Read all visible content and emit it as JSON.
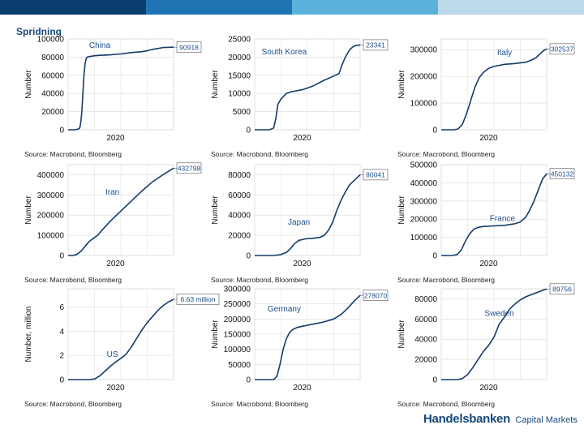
{
  "slide": {
    "title": "Spridning",
    "logo_brand": "Handelsbanken",
    "logo_suffix": "Capital Markets",
    "header_colors": [
      "#0a3d6e",
      "#1f74b4",
      "#5ab2db",
      "#bcd9ea"
    ],
    "accent": "#16497a"
  },
  "chart_data": [
    {
      "type": "line",
      "title": "China",
      "xlabel": "",
      "ylabel": "Number",
      "ylim": [
        0,
        100000
      ],
      "yticks": [
        0,
        20000,
        40000,
        60000,
        80000,
        100000
      ],
      "ytick_labels": [
        "0",
        "20000",
        "40000",
        "60000",
        "80000",
        "100000"
      ],
      "xtick_labels": [
        "2020"
      ],
      "end_label": "90918",
      "source": "Source: Macrobond, Bloomberg",
      "grid": true,
      "x": [
        0,
        6,
        9,
        11,
        12,
        13,
        14,
        15,
        16,
        17,
        18,
        20,
        25,
        30,
        40,
        50,
        60,
        70,
        75,
        80,
        85,
        90,
        100
      ],
      "y": [
        0,
        0,
        500,
        2000,
        8000,
        20000,
        40000,
        60000,
        72000,
        78000,
        80000,
        80500,
        81500,
        82000,
        82500,
        83500,
        85000,
        86000,
        87000,
        88500,
        89500,
        90500,
        90918
      ]
    },
    {
      "type": "line",
      "title": "South Korea",
      "xlabel": "",
      "ylabel": "Number",
      "ylim": [
        0,
        25000
      ],
      "yticks": [
        0,
        5000,
        10000,
        15000,
        20000,
        25000
      ],
      "ytick_labels": [
        "0",
        "5000",
        "10000",
        "15000",
        "20000",
        "25000"
      ],
      "xtick_labels": [
        "2020"
      ],
      "end_label": "23341",
      "source": "Source: Macrobond, Bloomberg",
      "grid": true,
      "x": [
        0,
        14,
        18,
        20,
        22,
        25,
        30,
        35,
        45,
        55,
        65,
        75,
        80,
        83,
        86,
        90,
        93,
        96,
        100
      ],
      "y": [
        0,
        0,
        500,
        3000,
        7000,
        8500,
        10000,
        10500,
        11000,
        12000,
        13500,
        14800,
        15500,
        18000,
        20000,
        22000,
        22800,
        23200,
        23341
      ]
    },
    {
      "type": "line",
      "title": "Italy",
      "xlabel": "",
      "ylabel": "Number",
      "ylim": [
        0,
        340000
      ],
      "yticks": [
        0,
        100000,
        200000,
        300000
      ],
      "ytick_labels": [
        "0",
        "100000",
        "200000",
        "300000"
      ],
      "xtick_labels": [
        "2020"
      ],
      "end_label": "302537",
      "source": "Source: Macrobond, Bloomberg",
      "grid": true,
      "x": [
        0,
        12,
        16,
        20,
        24,
        28,
        32,
        36,
        40,
        45,
        50,
        60,
        70,
        80,
        85,
        90,
        94,
        97,
        100
      ],
      "y": [
        0,
        0,
        3000,
        20000,
        60000,
        110000,
        160000,
        195000,
        215000,
        230000,
        237000,
        245000,
        248000,
        253000,
        260000,
        270000,
        285000,
        296000,
        302537
      ]
    },
    {
      "type": "line",
      "title": "Iran",
      "xlabel": "",
      "ylabel": "Number",
      "ylim": [
        0,
        450000
      ],
      "yticks": [
        0,
        100000,
        200000,
        300000,
        400000
      ],
      "ytick_labels": [
        "0",
        "100000",
        "200000",
        "300000",
        "400000"
      ],
      "xtick_labels": [
        "2020"
      ],
      "end_label": "432798",
      "source": "Source: Macrobond, Bloomberg",
      "grid": true,
      "x": [
        0,
        4,
        8,
        12,
        16,
        20,
        24,
        28,
        32,
        40,
        50,
        60,
        70,
        80,
        90,
        100
      ],
      "y": [
        0,
        0,
        5000,
        20000,
        45000,
        70000,
        85000,
        100000,
        125000,
        170000,
        220000,
        270000,
        320000,
        365000,
        400000,
        432798
      ]
    },
    {
      "type": "line",
      "title": "Japan",
      "xlabel": "",
      "ylabel": "Number",
      "ylim": [
        0,
        90000
      ],
      "yticks": [
        0,
        20000,
        40000,
        60000,
        80000
      ],
      "ytick_labels": [
        "0",
        "20000",
        "40000",
        "60000",
        "80000"
      ],
      "xtick_labels": [
        "2020"
      ],
      "end_label": "80041",
      "source": "Source: Macrobond, Bloomberg",
      "grid": true,
      "x": [
        0,
        18,
        25,
        30,
        34,
        38,
        42,
        48,
        55,
        62,
        66,
        70,
        74,
        78,
        82,
        86,
        90,
        95,
        100
      ],
      "y": [
        0,
        0,
        1000,
        3000,
        7000,
        12000,
        15000,
        16500,
        17000,
        18000,
        20000,
        25000,
        33000,
        45000,
        55000,
        63000,
        70000,
        75000,
        80041
      ]
    },
    {
      "type": "line",
      "title": "France",
      "xlabel": "",
      "ylabel": "Number",
      "ylim": [
        0,
        500000
      ],
      "yticks": [
        0,
        100000,
        200000,
        300000,
        400000,
        500000
      ],
      "ytick_labels": [
        "0",
        "100000",
        "200000",
        "300000",
        "400000",
        "500000"
      ],
      "xtick_labels": [
        "2020"
      ],
      "end_label": "450132",
      "source": "Source: Macrobond, Bloomberg",
      "grid": true,
      "x": [
        0,
        10,
        15,
        19,
        23,
        27,
        31,
        35,
        40,
        50,
        60,
        70,
        75,
        80,
        84,
        88,
        92,
        96,
        100
      ],
      "y": [
        0,
        0,
        5000,
        30000,
        80000,
        120000,
        145000,
        155000,
        160000,
        163000,
        166000,
        175000,
        185000,
        210000,
        250000,
        300000,
        360000,
        420000,
        450132
      ]
    },
    {
      "type": "line",
      "title": "US",
      "xlabel": "",
      "ylabel": "Number, million",
      "ylim": [
        0,
        7.5
      ],
      "yticks": [
        0,
        2,
        4,
        6
      ],
      "ytick_labels": [
        "0",
        "2",
        "4",
        "6"
      ],
      "xtick_labels": [
        "2020"
      ],
      "end_label": "6.63 million",
      "source": "Source: Macrobond, Bloomberg",
      "grid": true,
      "x": [
        0,
        20,
        25,
        30,
        35,
        40,
        45,
        50,
        55,
        60,
        65,
        70,
        75,
        80,
        85,
        90,
        95,
        100
      ],
      "y": [
        0,
        0,
        0.05,
        0.3,
        0.7,
        1.1,
        1.45,
        1.75,
        2.1,
        2.7,
        3.4,
        4.1,
        4.7,
        5.2,
        5.7,
        6.1,
        6.4,
        6.63
      ]
    },
    {
      "type": "line",
      "title": "Germany",
      "xlabel": "",
      "ylabel": "Number",
      "ylim": [
        0,
        300000
      ],
      "yticks": [
        0,
        50000,
        100000,
        150000,
        200000,
        250000,
        300000
      ],
      "ytick_labels": [
        "0",
        "50000",
        "100000",
        "150000",
        "200000",
        "250000",
        "300000"
      ],
      "xtick_labels": [
        "2020"
      ],
      "end_label": "278070",
      "source": "Source: Macrobond, Bloomberg",
      "grid": true,
      "x": [
        0,
        18,
        21,
        24,
        27,
        30,
        33,
        36,
        40,
        45,
        55,
        65,
        75,
        82,
        88,
        94,
        100
      ],
      "y": [
        0,
        0,
        10000,
        50000,
        100000,
        135000,
        155000,
        165000,
        172000,
        176000,
        183000,
        190000,
        200000,
        215000,
        235000,
        258000,
        278070
      ]
    },
    {
      "type": "line",
      "title": "Sweden",
      "xlabel": "",
      "ylabel": "Number",
      "ylim": [
        0,
        90000
      ],
      "yticks": [
        0,
        20000,
        40000,
        60000,
        80000
      ],
      "ytick_labels": [
        "0",
        "20000",
        "40000",
        "60000",
        "80000"
      ],
      "xtick_labels": [
        "2020"
      ],
      "end_label": "89756",
      "source": "Source: Macrobond, Bloomberg",
      "grid": true,
      "x": [
        0,
        15,
        20,
        25,
        30,
        35,
        40,
        45,
        50,
        55,
        60,
        65,
        70,
        75,
        80,
        85,
        90,
        95,
        100
      ],
      "y": [
        0,
        0,
        1000,
        5000,
        12000,
        20000,
        28000,
        34000,
        42000,
        55000,
        62000,
        70000,
        75000,
        79000,
        82000,
        84000,
        86000,
        88000,
        89756
      ]
    }
  ]
}
